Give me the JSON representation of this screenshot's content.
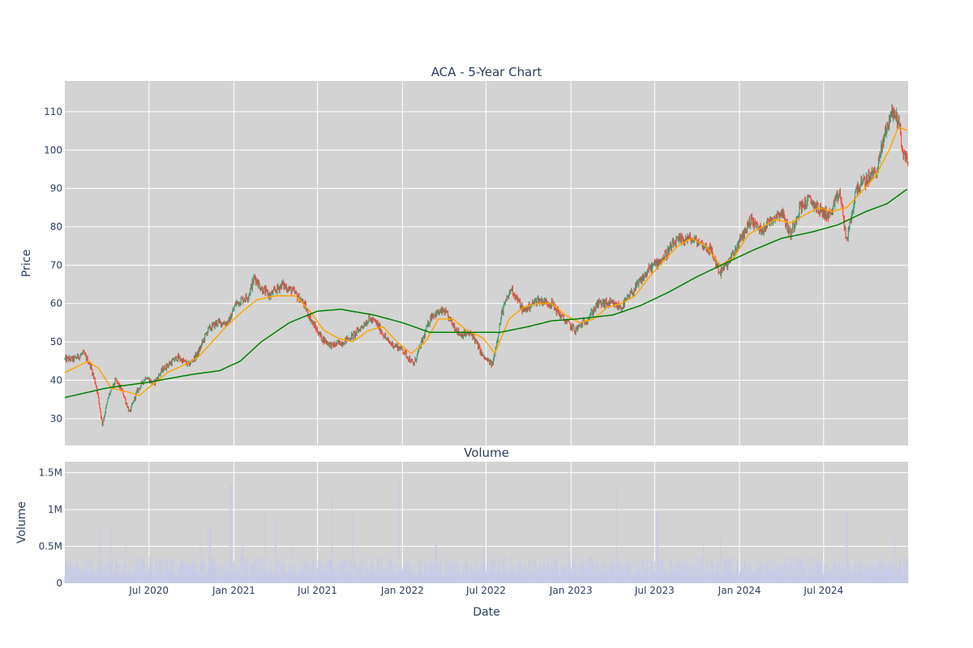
{
  "chart_data": [
    {
      "type": "candlestick",
      "title": "ACA - 5-Year Chart",
      "ylabel": "Price",
      "ylim": [
        23,
        118
      ],
      "yticks": [
        30,
        40,
        50,
        60,
        70,
        80,
        90,
        100,
        110
      ],
      "xlim": [
        "2020-01-01",
        "2024-12-31"
      ],
      "grid": true,
      "background": "#d3d3d3",
      "colors": {
        "up": "#3d9970",
        "down": "#ff4136",
        "ma_short": "#ffa500",
        "ma_long": "#008000"
      },
      "price_path_approx": [
        [
          "2020-01-01",
          45.5
        ],
        [
          "2020-01-20",
          45.5
        ],
        [
          "2020-02-10",
          47
        ],
        [
          "2020-02-25",
          44
        ],
        [
          "2020-03-10",
          38
        ],
        [
          "2020-03-22",
          28.5
        ],
        [
          "2020-04-05",
          36
        ],
        [
          "2020-04-20",
          40
        ],
        [
          "2020-05-05",
          37
        ],
        [
          "2020-05-20",
          31.5
        ],
        [
          "2020-06-05",
          37
        ],
        [
          "2020-06-25",
          41
        ],
        [
          "2020-07-10",
          39
        ],
        [
          "2020-08-01",
          43
        ],
        [
          "2020-09-01",
          46
        ],
        [
          "2020-09-25",
          44
        ],
        [
          "2020-10-15",
          47
        ],
        [
          "2020-11-05",
          53
        ],
        [
          "2020-11-25",
          55
        ],
        [
          "2020-12-20",
          55
        ],
        [
          "2021-01-05",
          60
        ],
        [
          "2021-02-01",
          62
        ],
        [
          "2021-02-15",
          67
        ],
        [
          "2021-03-01",
          64
        ],
        [
          "2021-03-20",
          62
        ],
        [
          "2021-04-15",
          65
        ],
        [
          "2021-05-10",
          63
        ],
        [
          "2021-06-01",
          60
        ],
        [
          "2021-06-20",
          55
        ],
        [
          "2021-07-10",
          51
        ],
        [
          "2021-08-01",
          49
        ],
        [
          "2021-08-25",
          50
        ],
        [
          "2021-09-20",
          52
        ],
        [
          "2021-10-20",
          56
        ],
        [
          "2021-11-05",
          55
        ],
        [
          "2021-12-01",
          50
        ],
        [
          "2022-01-01",
          48
        ],
        [
          "2022-01-25",
          44
        ],
        [
          "2022-02-15",
          51
        ],
        [
          "2022-03-05",
          57
        ],
        [
          "2022-04-01",
          58
        ],
        [
          "2022-05-05",
          52
        ],
        [
          "2022-06-01",
          52
        ],
        [
          "2022-06-25",
          46
        ],
        [
          "2022-07-15",
          44
        ],
        [
          "2022-08-05",
          58
        ],
        [
          "2022-08-25",
          64
        ],
        [
          "2022-09-20",
          58
        ],
        [
          "2022-10-20",
          61
        ],
        [
          "2022-11-20",
          60
        ],
        [
          "2022-12-15",
          56
        ],
        [
          "2023-01-10",
          53
        ],
        [
          "2023-02-05",
          56
        ],
        [
          "2023-03-01",
          60
        ],
        [
          "2023-03-25",
          60
        ],
        [
          "2023-04-20",
          59
        ],
        [
          "2023-05-20",
          64
        ],
        [
          "2023-06-20",
          69
        ],
        [
          "2023-07-20",
          72
        ],
        [
          "2023-08-15",
          76
        ],
        [
          "2023-09-10",
          77
        ],
        [
          "2023-10-05",
          76
        ],
        [
          "2023-10-30",
          74
        ],
        [
          "2023-11-20",
          68
        ],
        [
          "2023-12-10",
          71
        ],
        [
          "2024-01-05",
          77
        ],
        [
          "2024-01-25",
          82
        ],
        [
          "2024-02-15",
          79
        ],
        [
          "2024-03-10",
          82
        ],
        [
          "2024-04-01",
          84
        ],
        [
          "2024-04-20",
          78
        ],
        [
          "2024-05-10",
          85
        ],
        [
          "2024-06-01",
          87
        ],
        [
          "2024-06-25",
          84
        ],
        [
          "2024-07-15",
          83
        ],
        [
          "2024-08-05",
          89
        ],
        [
          "2024-08-20",
          76
        ],
        [
          "2024-09-10",
          90
        ],
        [
          "2024-10-01",
          92
        ],
        [
          "2024-10-25",
          95
        ],
        [
          "2024-11-10",
          104
        ],
        [
          "2024-11-25",
          110
        ],
        [
          "2024-12-10",
          108
        ],
        [
          "2024-12-20",
          99
        ],
        [
          "2024-12-31",
          97
        ]
      ],
      "ma_short_approx": [
        [
          "2020-01-01",
          42
        ],
        [
          "2020-02-20",
          45
        ],
        [
          "2020-03-15",
          43
        ],
        [
          "2020-04-10",
          38
        ],
        [
          "2020-05-15",
          37
        ],
        [
          "2020-06-10",
          36
        ],
        [
          "2020-07-10",
          39
        ],
        [
          "2020-08-10",
          42
        ],
        [
          "2020-09-15",
          44
        ],
        [
          "2020-10-15",
          46
        ],
        [
          "2020-11-15",
          50
        ],
        [
          "2020-12-15",
          54
        ],
        [
          "2021-01-20",
          58
        ],
        [
          "2021-02-20",
          61
        ],
        [
          "2021-04-01",
          62
        ],
        [
          "2021-05-15",
          62
        ],
        [
          "2021-06-15",
          58
        ],
        [
          "2021-07-15",
          53
        ],
        [
          "2021-08-15",
          51
        ],
        [
          "2021-09-15",
          50
        ],
        [
          "2021-10-20",
          53
        ],
        [
          "2021-11-20",
          54
        ],
        [
          "2021-12-20",
          50
        ],
        [
          "2022-01-20",
          47
        ],
        [
          "2022-02-20",
          50
        ],
        [
          "2022-03-20",
          56
        ],
        [
          "2022-04-20",
          56
        ],
        [
          "2022-05-20",
          53
        ],
        [
          "2022-06-25",
          51
        ],
        [
          "2022-07-20",
          47
        ],
        [
          "2022-08-20",
          56
        ],
        [
          "2022-09-20",
          59
        ],
        [
          "2022-10-20",
          60
        ],
        [
          "2022-11-20",
          60
        ],
        [
          "2022-12-20",
          57
        ],
        [
          "2023-01-20",
          55
        ],
        [
          "2023-02-20",
          56
        ],
        [
          "2023-03-20",
          59
        ],
        [
          "2023-04-20",
          60
        ],
        [
          "2023-05-20",
          62
        ],
        [
          "2023-06-20",
          67
        ],
        [
          "2023-07-20",
          71
        ],
        [
          "2023-08-20",
          75
        ],
        [
          "2023-09-20",
          77
        ],
        [
          "2023-10-20",
          75
        ],
        [
          "2023-11-20",
          70
        ],
        [
          "2023-12-20",
          72
        ],
        [
          "2024-01-20",
          78
        ],
        [
          "2024-02-20",
          80
        ],
        [
          "2024-03-20",
          82
        ],
        [
          "2024-04-20",
          81
        ],
        [
          "2024-05-20",
          83
        ],
        [
          "2024-06-20",
          85
        ],
        [
          "2024-07-20",
          84
        ],
        [
          "2024-08-20",
          85
        ],
        [
          "2024-09-20",
          89
        ],
        [
          "2024-10-20",
          93
        ],
        [
          "2024-11-20",
          100
        ],
        [
          "2024-12-10",
          106
        ],
        [
          "2024-12-31",
          105
        ]
      ],
      "ma_long_approx": [
        [
          "2020-01-01",
          35.5
        ],
        [
          "2020-04-01",
          38
        ],
        [
          "2020-07-01",
          39.5
        ],
        [
          "2020-10-01",
          41.5
        ],
        [
          "2020-12-01",
          42.5
        ],
        [
          "2021-01-15",
          45
        ],
        [
          "2021-03-01",
          50
        ],
        [
          "2021-05-01",
          55
        ],
        [
          "2021-07-01",
          58
        ],
        [
          "2021-08-20",
          58.5
        ],
        [
          "2021-11-01",
          57
        ],
        [
          "2022-01-01",
          55
        ],
        [
          "2022-03-01",
          52.5
        ],
        [
          "2022-06-01",
          52.5
        ],
        [
          "2022-08-01",
          52.5
        ],
        [
          "2022-10-01",
          54
        ],
        [
          "2022-11-20",
          55.5
        ],
        [
          "2023-01-15",
          56
        ],
        [
          "2023-04-01",
          57
        ],
        [
          "2023-06-01",
          59.5
        ],
        [
          "2023-08-01",
          63
        ],
        [
          "2023-10-01",
          67
        ],
        [
          "2023-12-01",
          70.5
        ],
        [
          "2024-02-01",
          74
        ],
        [
          "2024-04-01",
          77
        ],
        [
          "2024-06-01",
          78.5
        ],
        [
          "2024-08-01",
          80.5
        ],
        [
          "2024-10-01",
          84
        ],
        [
          "2024-11-15",
          86
        ],
        [
          "2024-12-31",
          90
        ]
      ]
    },
    {
      "type": "bar",
      "title": "Volume",
      "ylabel": "Volume",
      "xlabel": "Date",
      "ylim": [
        0,
        1650000
      ],
      "yticks": [
        0,
        500000,
        1000000,
        1500000
      ],
      "ytick_labels": [
        "0",
        "0.5M",
        "1M",
        "1.5M"
      ],
      "xlim": [
        "2020-01-01",
        "2024-12-31"
      ],
      "xticks": [
        "2020-07-01",
        "2021-01-01",
        "2021-07-01",
        "2022-01-01",
        "2022-07-01",
        "2023-01-01",
        "2023-07-01",
        "2024-01-01",
        "2024-07-01"
      ],
      "xtick_labels": [
        "Jul 2020",
        "Jan 2021",
        "Jul 2021",
        "Jan 2022",
        "Jul 2022",
        "Jan 2023",
        "Jul 2023",
        "Jan 2024",
        "Jul 2024"
      ],
      "color": "#c8cbe6",
      "baseline_volume": 250000,
      "spikes": [
        [
          "2020-03-18",
          750000
        ],
        [
          "2020-04-10",
          800000
        ],
        [
          "2020-05-12",
          780000
        ],
        [
          "2020-10-20",
          850000
        ],
        [
          "2020-11-10",
          800000
        ],
        [
          "2020-12-25",
          1350000
        ],
        [
          "2021-01-20",
          600000
        ],
        [
          "2021-03-10",
          950000
        ],
        [
          "2021-04-01",
          850000
        ],
        [
          "2021-05-05",
          500000
        ],
        [
          "2021-08-01",
          1150000
        ],
        [
          "2021-09-15",
          950000
        ],
        [
          "2021-12-25",
          1380000
        ],
        [
          "2022-03-15",
          550000
        ],
        [
          "2022-06-25",
          520000
        ],
        [
          "2022-12-28",
          1550000
        ],
        [
          "2023-04-10",
          1330000
        ],
        [
          "2023-07-08",
          980000
        ],
        [
          "2023-10-15",
          600000
        ],
        [
          "2023-11-20",
          700000
        ],
        [
          "2024-08-20",
          950000
        ],
        [
          "2024-12-01",
          680000
        ]
      ]
    }
  ]
}
